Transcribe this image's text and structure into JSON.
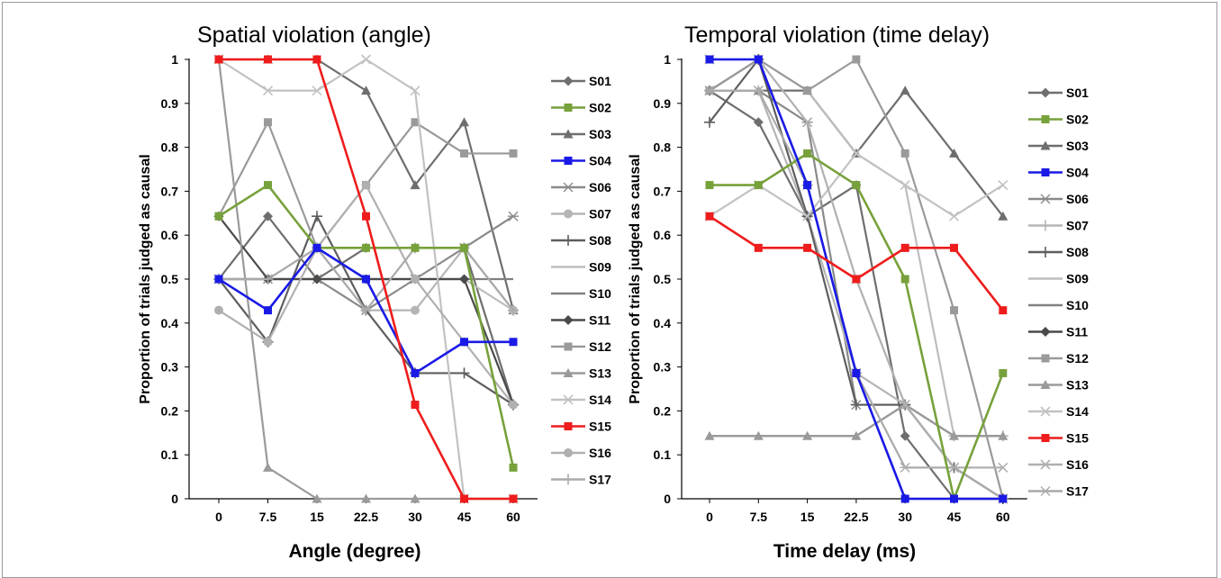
{
  "chart_data": [
    {
      "type": "line",
      "title": "Spatial violation (angle)",
      "xlabel": "Angle (degree)",
      "ylabel": "Proportion of trials judged as causal",
      "categories": [
        "0",
        "7.5",
        "15",
        "22.5",
        "30",
        "45",
        "60"
      ],
      "ylim": [
        0,
        1
      ],
      "yticks": [
        "0",
        "0.1",
        "0.2",
        "0.3",
        "0.4",
        "0.5",
        "0.6",
        "0.7",
        "0.8",
        "0.9",
        "1"
      ],
      "legend_position": "right",
      "series": [
        {
          "name": "S01",
          "color": "#6e6e6e",
          "marker": "diamond",
          "values": [
            0.5,
            0.643,
            0.5,
            0.571,
            0.571,
            0.571,
            0.214
          ]
        },
        {
          "name": "S02",
          "color": "#77a13b",
          "marker": "square",
          "values": [
            0.643,
            0.714,
            0.571,
            0.571,
            0.571,
            0.571,
            0.071
          ]
        },
        {
          "name": "S03",
          "color": "#6e6e6e",
          "marker": "triangle",
          "values": [
            1,
            1,
            1,
            0.929,
            0.714,
            0.857,
            0.429
          ]
        },
        {
          "name": "S04",
          "color": "#1a1ae6",
          "marker": "square",
          "values": [
            0.5,
            0.429,
            0.571,
            0.5,
            0.286,
            0.357,
            0.357
          ]
        },
        {
          "name": "S06",
          "color": "#8a8a8a",
          "marker": "star",
          "values": [
            0.5,
            0.5,
            0.5,
            0.429,
            0.5,
            0.571,
            0.643
          ]
        },
        {
          "name": "S07",
          "color": "#b5b5b5",
          "marker": "circle",
          "values": [
            0.5,
            0.5,
            0.571,
            0.429,
            0.429,
            0.571,
            0.429
          ]
        },
        {
          "name": "S08",
          "color": "#5e5e5e",
          "marker": "plus",
          "values": [
            0.5,
            0.357,
            0.643,
            0.429,
            0.286,
            0.286,
            0.214
          ]
        },
        {
          "name": "S09",
          "color": "#bdbdbd",
          "marker": "none",
          "values": [
            0.5,
            0.5,
            0.5,
            0.5,
            0.5,
            0.5,
            0.429
          ]
        },
        {
          "name": "S10",
          "color": "#808080",
          "marker": "none",
          "values": [
            0.5,
            0.5,
            0.5,
            0.5,
            0.5,
            0.5,
            0.5
          ]
        },
        {
          "name": "S11",
          "color": "#4a4a4a",
          "marker": "diamond",
          "values": [
            0.643,
            0.5,
            0.5,
            0.5,
            0.5,
            0.5,
            0.214
          ]
        },
        {
          "name": "S12",
          "color": "#9a9a9a",
          "marker": "square",
          "values": [
            0.643,
            0.857,
            0.571,
            0.714,
            0.857,
            0.786,
            0.786
          ]
        },
        {
          "name": "S13",
          "color": "#9a9a9a",
          "marker": "triangle",
          "values": [
            1,
            0.071,
            0,
            0,
            0,
            0,
            0
          ]
        },
        {
          "name": "S14",
          "color": "#c2c2c2",
          "marker": "x",
          "values": [
            1,
            0.929,
            0.929,
            1,
            0.929,
            0,
            0
          ]
        },
        {
          "name": "S15",
          "color": "#ee1c1c",
          "marker": "square",
          "values": [
            1,
            1,
            1,
            0.643,
            0.214,
            0,
            0
          ]
        },
        {
          "name": "S16",
          "color": "#b0b0b0",
          "marker": "circle",
          "values": [
            0.429,
            0.357,
            0.571,
            0.714,
            0.5,
            0.357,
            0.214
          ]
        },
        {
          "name": "S17",
          "color": "#aaaaaa",
          "marker": "plus",
          "values": [
            0.5,
            0.5,
            0.571,
            0.429,
            0.571,
            0.571,
            0.429
          ]
        }
      ]
    },
    {
      "type": "line",
      "title": "Temporal violation (time delay)",
      "xlabel": "Time delay (ms)",
      "ylabel": "Proportion of trials judged as causal",
      "categories": [
        "0",
        "7.5",
        "15",
        "22.5",
        "30",
        "45",
        "60"
      ],
      "ylim": [
        0,
        1
      ],
      "yticks": [
        "0",
        "0.1",
        "0.2",
        "0.3",
        "0.4",
        "0.5",
        "0.6",
        "0.7",
        "0.8",
        "0.9",
        "1"
      ],
      "legend_position": "right",
      "series": [
        {
          "name": "S01",
          "color": "#6e6e6e",
          "marker": "diamond",
          "values": [
            0.929,
            0.857,
            0.643,
            0.714,
            0.143,
            0,
            0
          ]
        },
        {
          "name": "S02",
          "color": "#77a13b",
          "marker": "square",
          "values": [
            0.714,
            0.714,
            0.786,
            0.714,
            0.5,
            0,
            0.286
          ]
        },
        {
          "name": "S03",
          "color": "#6e6e6e",
          "marker": "triangle",
          "values": [
            0.929,
            0.929,
            0.929,
            0.786,
            0.929,
            0.786,
            0.643
          ]
        },
        {
          "name": "S04",
          "color": "#1a1ae6",
          "marker": "square",
          "values": [
            1,
            1,
            0.714,
            0.286,
            0,
            0,
            0
          ]
        },
        {
          "name": "S06",
          "color": "#8a8a8a",
          "marker": "star",
          "values": [
            0.929,
            0.929,
            0.857,
            0.214,
            0.214,
            0.071,
            0
          ]
        },
        {
          "name": "S07",
          "color": "#b5b5b5",
          "marker": "plus",
          "values": [
            0.929,
            0.929,
            0.643,
            0.286,
            0.214,
            0.143,
            0.143
          ]
        },
        {
          "name": "S08",
          "color": "#5e5e5e",
          "marker": "plus",
          "values": [
            0.857,
            1,
            0.643,
            0.214,
            0.214,
            0.071,
            0
          ]
        },
        {
          "name": "S09",
          "color": "#bdbdbd",
          "marker": "none",
          "values": [
            1,
            1,
            0.929,
            0.786,
            0.714,
            0.143,
            0.143
          ]
        },
        {
          "name": "S10",
          "color": "#808080",
          "marker": "none",
          "values": [
            0.143,
            0.143,
            0.143,
            0.143,
            0.214,
            0.143,
            0.143
          ]
        },
        {
          "name": "S11",
          "color": "#4a4a4a",
          "marker": "diamond",
          "values": [
            0.929,
            1,
            0.714,
            0.286,
            0,
            0,
            0
          ]
        },
        {
          "name": "S12",
          "color": "#9a9a9a",
          "marker": "square",
          "values": [
            0.929,
            1,
            0.929,
            1,
            0.786,
            0.429,
            0
          ]
        },
        {
          "name": "S13",
          "color": "#9a9a9a",
          "marker": "triangle",
          "values": [
            0.143,
            0.143,
            0.143,
            0.143,
            0.214,
            0.143,
            0.143
          ]
        },
        {
          "name": "S14",
          "color": "#c2c2c2",
          "marker": "x",
          "values": [
            0.643,
            0.714,
            0.643,
            0.786,
            0.714,
            0.643,
            0.714
          ]
        },
        {
          "name": "S15",
          "color": "#ee1c1c",
          "marker": "square",
          "values": [
            0.643,
            0.571,
            0.571,
            0.5,
            0.571,
            0.571,
            0.429
          ]
        },
        {
          "name": "S16",
          "color": "#b0b0b0",
          "marker": "x",
          "values": [
            1,
            1,
            0.857,
            0.5,
            0.214,
            0.071,
            0.071
          ]
        },
        {
          "name": "S17",
          "color": "#aaaaaa",
          "marker": "star",
          "values": [
            0.929,
            0.929,
            0.714,
            0.286,
            0.071,
            0.071,
            0
          ]
        }
      ]
    }
  ]
}
